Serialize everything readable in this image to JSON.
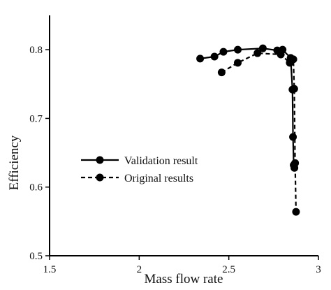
{
  "chart_data": {
    "type": "line",
    "xlabel": "Mass flow rate",
    "ylabel": "Efficiency",
    "xlim": [
      1.5,
      3
    ],
    "ylim": [
      0.5,
      0.85
    ],
    "xticks": [
      "1.5",
      "2",
      "2.5",
      "3"
    ],
    "yticks": [
      "0.5",
      "0.6",
      "0.7",
      "0.8"
    ],
    "grid": false,
    "legend_position": "middle-left",
    "series": [
      {
        "name": "Validation result",
        "line_style": "solid",
        "color": "#000000",
        "x": [
          2.34,
          2.42,
          2.47,
          2.55,
          2.69,
          2.77,
          2.8,
          2.845,
          2.855,
          2.858,
          2.862,
          2.866
        ],
        "y": [
          0.787,
          0.79,
          0.797,
          0.8,
          0.802,
          0.799,
          0.8,
          0.788,
          0.742,
          0.673,
          0.632,
          0.628
        ]
      },
      {
        "name": "Original results",
        "line_style": "dashed",
        "color": "#000000",
        "x": [
          2.46,
          2.55,
          2.66,
          2.79,
          2.84,
          2.86,
          2.865,
          2.87,
          2.875
        ],
        "y": [
          0.767,
          0.781,
          0.795,
          0.793,
          0.781,
          0.786,
          0.743,
          0.635,
          0.564
        ]
      }
    ]
  }
}
